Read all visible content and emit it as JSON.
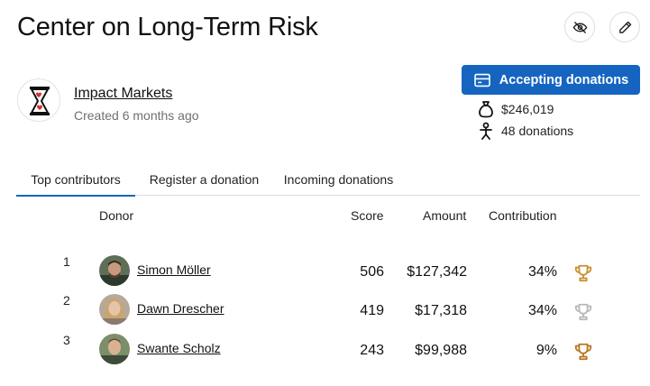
{
  "page": {
    "title": "Center on Long-Term Risk"
  },
  "header_actions": {
    "hide_icon": "eye-off-icon",
    "edit_icon": "pencil-icon"
  },
  "organization": {
    "name": "Impact Markets",
    "created": "Created 6 months ago",
    "logo_icon": "hourglass-hearts-icon"
  },
  "donation_panel": {
    "accept_label": "Accepting donations",
    "accent_color": "#1565c0",
    "total_amount": "$246,019",
    "donations_count": "48 donations"
  },
  "tabs": [
    {
      "label": "Top contributors",
      "active": true
    },
    {
      "label": "Register a donation",
      "active": false
    },
    {
      "label": "Incoming donations",
      "active": false
    }
  ],
  "table": {
    "headers": {
      "donor": "Donor",
      "score": "Score",
      "amount": "Amount",
      "contribution": "Contribution"
    },
    "rows": [
      {
        "rank": "1",
        "name": "Simon Möller",
        "score": "506",
        "amount": "$127,342",
        "contribution": "34%",
        "trophy": "gold",
        "trophy_color": "#c8912b"
      },
      {
        "rank": "2",
        "name": "Dawn Drescher",
        "score": "419",
        "amount": "$17,318",
        "contribution": "34%",
        "trophy": "silver",
        "trophy_color": "#b8b8b8"
      },
      {
        "rank": "3",
        "name": "Swante Scholz",
        "score": "243",
        "amount": "$99,988",
        "contribution": "9%",
        "trophy": "bronze",
        "trophy_color": "#b8761f"
      }
    ]
  }
}
